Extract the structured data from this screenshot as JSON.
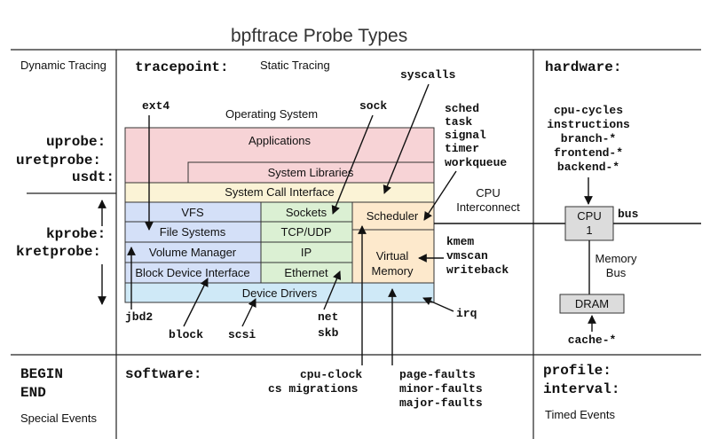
{
  "title": "bpftrace Probe Types",
  "left": {
    "dynamic_tracing": "Dynamic Tracing",
    "uprobe": "uprobe:",
    "uretprobe": "uretprobe:",
    "usdt": "usdt:",
    "kprobe": "kprobe:",
    "kretprobe": "kretprobe:",
    "begin": "BEGIN",
    "end": "END",
    "special_events": "Special Events"
  },
  "center": {
    "tracepoint": "tracepoint:",
    "static_tracing": "Static Tracing",
    "software": "software:",
    "operating_system": "Operating System"
  },
  "right": {
    "hardware": "hardware:",
    "hw_events": [
      "cpu-cycles",
      "instructions",
      "branch-*",
      "frontend-*",
      "backend-*"
    ],
    "profile": "profile:",
    "interval": "interval:",
    "timed_events": "Timed Events"
  },
  "os_blocks": {
    "applications": "Applications",
    "system_libraries": "System Libraries",
    "syscall_interface": "System Call Interface",
    "vfs": "VFS",
    "file_systems": "File Systems",
    "volume_manager": "Volume Manager",
    "block_device_interface": "Block Device Interface",
    "sockets": "Sockets",
    "tcp_udp": "TCP/UDP",
    "ip": "IP",
    "ethernet": "Ethernet",
    "scheduler": "Scheduler",
    "virtual_memory_1": "Virtual",
    "virtual_memory_2": "Memory",
    "device_drivers": "Device Drivers"
  },
  "hw": {
    "cpu_interconnect_1": "CPU",
    "cpu_interconnect_2": "Interconnect",
    "cpu_1": "CPU",
    "cpu_2": "1",
    "bus": "bus",
    "memory_bus_1": "Memory",
    "memory_bus_2": "Bus",
    "dram": "DRAM",
    "cache": "cache-*"
  },
  "probes": {
    "ext4": "ext4",
    "sock": "sock",
    "syscalls": "syscalls",
    "sched_group": [
      "sched",
      "task",
      "signal",
      "timer",
      "workqueue"
    ],
    "mem_group": [
      "kmem",
      "vmscan",
      "writeback"
    ],
    "irq": "irq",
    "jbd2": "jbd2",
    "block": "block",
    "scsi": "scsi",
    "net": "net",
    "skb": "skb",
    "cpu_clock": "cpu-clock",
    "cs_migrations": "cs migrations",
    "page_faults": [
      "page-faults",
      "minor-faults",
      "major-faults"
    ]
  },
  "colors": {
    "applications": "#f7d3d6",
    "syscall": "#fbf3d6",
    "vfs_column": "#d4e0f8",
    "net_column": "#dbf0d3",
    "sched_column": "#fde9cc",
    "device_drivers": "#cfe9f7",
    "hw_box": "#dcdcdc"
  }
}
